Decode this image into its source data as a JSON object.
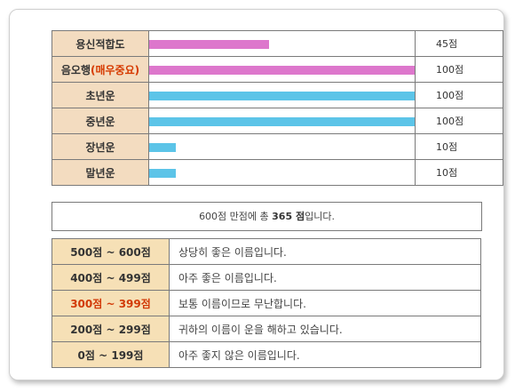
{
  "rows": [
    {
      "label": "용신적합도",
      "note": "",
      "percent": 45,
      "bar_color": "#dd77cc",
      "score": "45점"
    },
    {
      "label": "음오행",
      "note": "(매우중요)",
      "percent": 100,
      "bar_color": "#dd77cc",
      "score": "100점"
    },
    {
      "label": "초년운",
      "note": "",
      "percent": 100,
      "bar_color": "#5cc4e8",
      "score": "100점"
    },
    {
      "label": "중년운",
      "note": "",
      "percent": 100,
      "bar_color": "#5cc4e8",
      "score": "100점"
    },
    {
      "label": "장년운",
      "note": "",
      "percent": 10,
      "bar_color": "#5cc4e8",
      "score": "10점"
    },
    {
      "label": "말년운",
      "note": "",
      "percent": 10,
      "bar_color": "#5cc4e8",
      "score": "10점"
    }
  ],
  "total": {
    "prefix": "600점 만점에 총 ",
    "emphasis": "365 점",
    "suffix": "입니다."
  },
  "grades": [
    {
      "range": "500점 ~ 600점",
      "desc": "상당히 좋은 이름입니다.",
      "highlight": false
    },
    {
      "range": "400점 ~ 499점",
      "desc": "아주 좋은 이름입니다.",
      "highlight": false
    },
    {
      "range": "300점 ~ 399점",
      "desc": "보통 이름이므로 무난합니다.",
      "highlight": true
    },
    {
      "range": "200점 ~ 299점",
      "desc": "귀하의 이름이 운을 해하고 있습니다.",
      "highlight": false
    },
    {
      "range": "0점 ~ 199점",
      "desc": "아주 좋지 않은 이름입니다.",
      "highlight": false
    }
  ],
  "colors": {
    "label_bg": "#f3dcc0",
    "range_bg": "#f6e0b6",
    "accent_red": "#d23a08"
  }
}
